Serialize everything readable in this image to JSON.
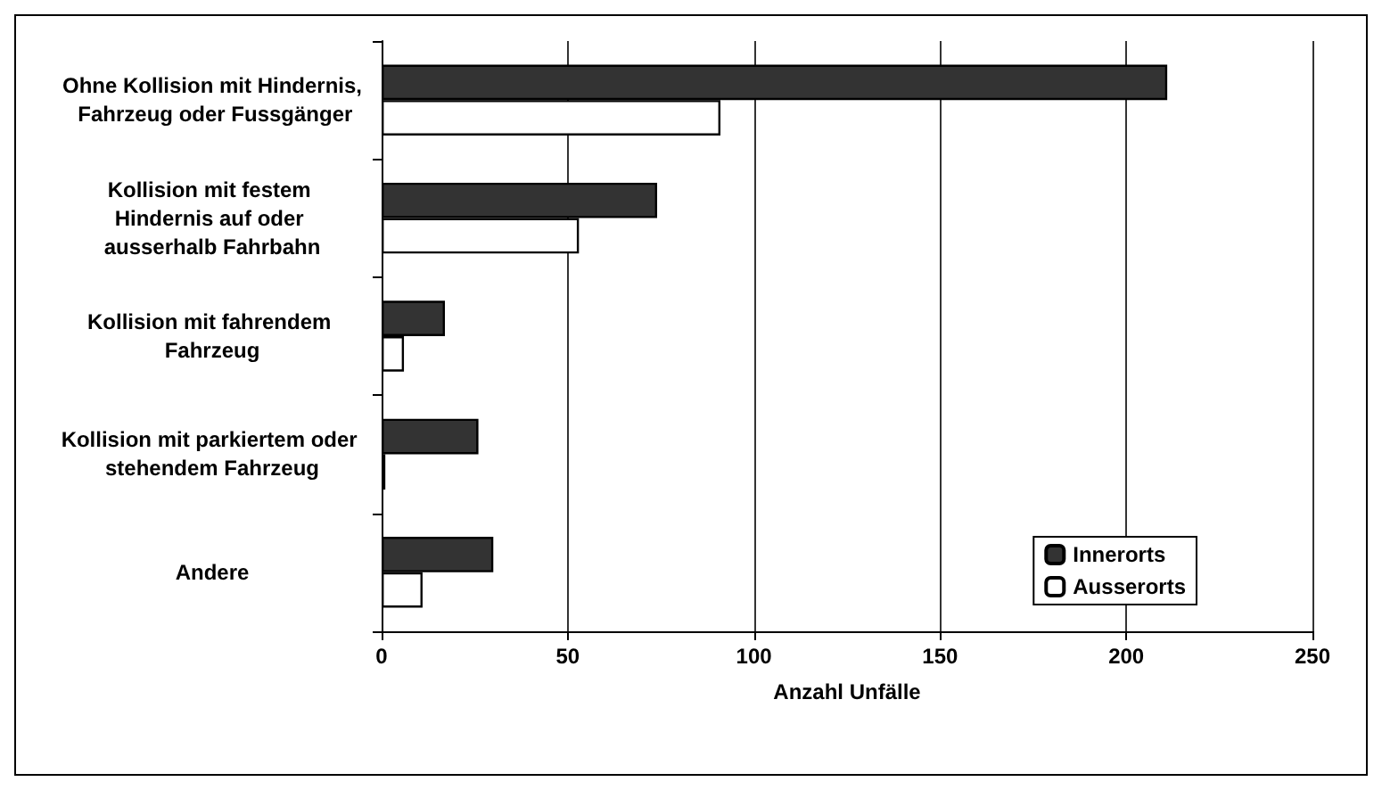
{
  "chart_data": {
    "type": "bar",
    "orientation": "horizontal",
    "xlabel": "Anzahl Unfälle",
    "categories": [
      "Ohne Kollision mit Hindernis, Fahrzeug oder Fussgänger",
      "Kollision mit festem Hindernis auf oder ausserhalb Fahrbahn",
      "Kollision mit fahrendem Fahrzeug",
      "Kollision mit parkiertem oder stehendem Fahrzeug",
      "Andere"
    ],
    "series": [
      {
        "name": "Innerorts",
        "color": "#333333",
        "values": [
          211,
          74,
          17,
          26,
          30
        ]
      },
      {
        "name": "Ausserorts",
        "color": "#ffffff",
        "values": [
          91,
          53,
          6,
          1,
          11
        ]
      }
    ],
    "xlim": [
      0,
      250
    ],
    "xticks": [
      0,
      50,
      100,
      150,
      200,
      250
    ],
    "grid": "x",
    "legend": "bottom right"
  }
}
